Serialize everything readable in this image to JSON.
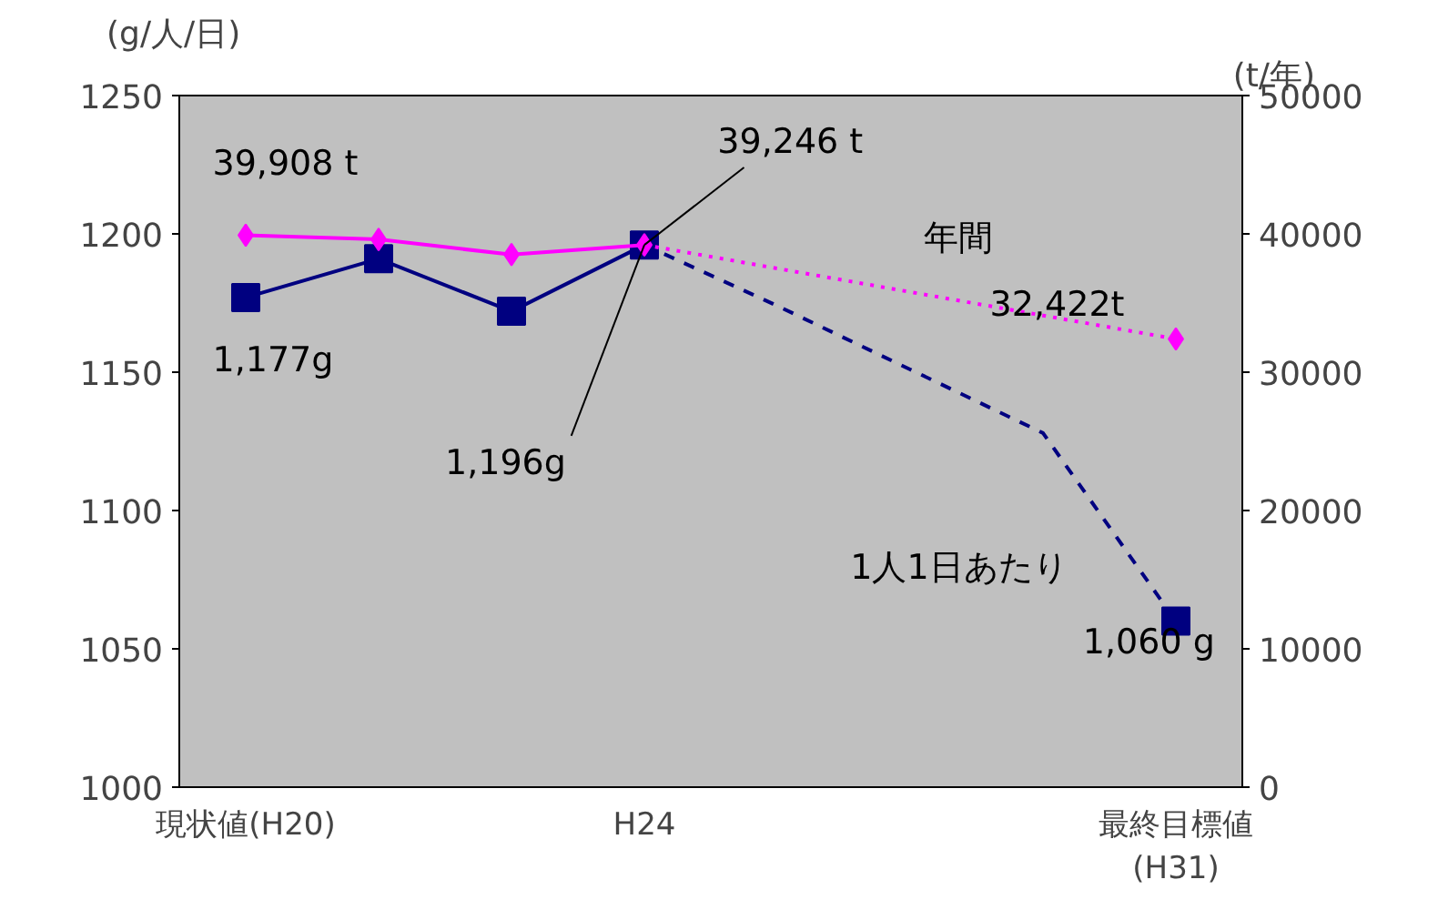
{
  "chart_data": {
    "type": "line",
    "ylabel": "(g/人/日)",
    "y2label": "(t/年)",
    "categories": [
      "現状値(H20)",
      null,
      null,
      "H24",
      null,
      null,
      null,
      "最終目標値\n(H31)"
    ],
    "ylim": [
      1000,
      1250
    ],
    "yticks": [
      1000,
      1050,
      1100,
      1150,
      1200,
      1250
    ],
    "y2lim": [
      0,
      50000
    ],
    "y2ticks": [
      0,
      10000,
      20000,
      30000,
      40000,
      50000
    ],
    "grid": false,
    "series": [
      {
        "color": "#000080",
        "marker": "square",
        "line_style": "solid",
        "values": [
          1177,
          1191,
          1172,
          1196,
          null,
          null,
          null,
          null
        ]
      },
      {
        "color": "#000080",
        "marker": "none",
        "line_style": "dashed",
        "values": [
          null,
          null,
          null,
          1196,
          1174,
          1151,
          1128,
          1060
        ]
      },
      {
        "type": "scatter",
        "color": "#000080",
        "marker": "square",
        "values": [
          null,
          null,
          null,
          null,
          null,
          null,
          null,
          1060
        ]
      },
      {
        "axis": "y2",
        "color": "#ff00ff",
        "marker": "diamond",
        "line_style": "solid",
        "values": [
          39900,
          39600,
          38500,
          39200,
          null,
          null,
          null,
          null
        ]
      },
      {
        "axis": "y2",
        "color": "#ff00ff",
        "marker": "none",
        "line_style": "dotted",
        "values": [
          null,
          null,
          null,
          39200,
          37500,
          35800,
          34100,
          32400
        ]
      },
      {
        "axis": "y2",
        "type": "scatter",
        "color": "#ff00ff",
        "marker": "diamond",
        "values": [
          null,
          null,
          null,
          null,
          null,
          null,
          null,
          32400
        ]
      }
    ],
    "annotations": [
      "39,908 t",
      {
        "text": "39,246 t",
        "x": "H24",
        "y": 1196
      },
      "1,177g",
      {
        "text": "1,196g",
        "x": "H24",
        "y": 1196
      },
      "32,422t",
      "1,060 g",
      "年間",
      "1人1日あたり"
    ]
  }
}
